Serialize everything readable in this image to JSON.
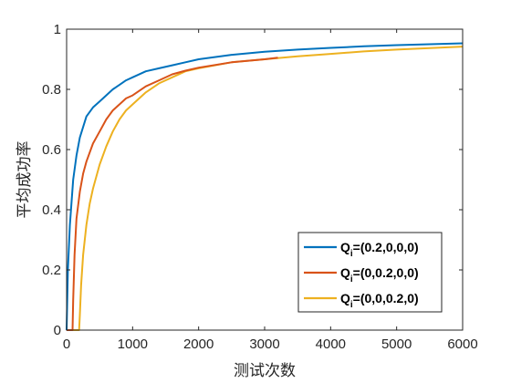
{
  "chart_data": {
    "type": "line",
    "xlabel": "测试次数",
    "ylabel": "平均成功率",
    "xlim": [
      0,
      6000
    ],
    "ylim": [
      0,
      1
    ],
    "x_ticks": [
      0,
      1000,
      2000,
      3000,
      4000,
      5000,
      6000
    ],
    "y_ticks": [
      0,
      0.2,
      0.4,
      0.6,
      0.8,
      1
    ],
    "x_tick_labels": [
      "0",
      "1000",
      "2000",
      "3000",
      "4000",
      "5000",
      "6000"
    ],
    "y_tick_labels": [
      "0",
      "0.2",
      "0.4",
      "0.6",
      "0.8",
      "1"
    ],
    "grid": false,
    "legend_position": "bottom-right",
    "series": [
      {
        "name": "Q_i=(0.2,0,0,0)",
        "label_main": "Q",
        "label_sub": "i",
        "label_rest": "=(0.2,0,0,0)",
        "color": "#0072BD",
        "x": [
          0,
          20,
          50,
          100,
          150,
          200,
          300,
          400,
          500,
          600,
          700,
          800,
          900,
          1000,
          1200,
          1400,
          1600,
          1800,
          2000,
          2500,
          3000,
          3500,
          4000,
          4500,
          5000,
          5500,
          6000
        ],
        "y": [
          0,
          0.2,
          0.35,
          0.5,
          0.58,
          0.64,
          0.71,
          0.74,
          0.76,
          0.78,
          0.8,
          0.815,
          0.83,
          0.84,
          0.86,
          0.87,
          0.88,
          0.89,
          0.9,
          0.915,
          0.925,
          0.932,
          0.938,
          0.943,
          0.947,
          0.95,
          0.953
        ]
      },
      {
        "name": "Q_i=(0,0.2,0,0)",
        "label_main": "Q",
        "label_sub": "i",
        "label_rest": "=(0,0.2,0,0)",
        "color": "#D95319",
        "x": [
          0,
          90,
          100,
          120,
          150,
          200,
          250,
          300,
          400,
          500,
          600,
          700,
          800,
          900,
          1000,
          1200,
          1400,
          1600,
          1800,
          2000,
          2500,
          3000,
          3200
        ],
        "y": [
          0,
          0,
          0.1,
          0.25,
          0.37,
          0.46,
          0.52,
          0.56,
          0.62,
          0.66,
          0.7,
          0.73,
          0.75,
          0.77,
          0.78,
          0.81,
          0.83,
          0.85,
          0.862,
          0.872,
          0.89,
          0.9,
          0.905
        ]
      },
      {
        "name": "Q_i=(0,0,0.2,0)",
        "label_main": "Q",
        "label_sub": "i",
        "label_rest": "=(0,0,0.2,0)",
        "color": "#EDB120",
        "x": [
          0,
          190,
          200,
          220,
          250,
          300,
          350,
          400,
          500,
          600,
          700,
          800,
          900,
          1000,
          1200,
          1400,
          1600,
          1800,
          2000,
          2500,
          3000,
          3500,
          4000,
          4500,
          5000,
          5500,
          6000
        ],
        "y": [
          0,
          0,
          0.05,
          0.15,
          0.25,
          0.35,
          0.42,
          0.47,
          0.55,
          0.61,
          0.66,
          0.7,
          0.73,
          0.75,
          0.79,
          0.82,
          0.84,
          0.86,
          0.87,
          0.89,
          0.9,
          0.91,
          0.918,
          0.926,
          0.932,
          0.937,
          0.942
        ]
      }
    ]
  }
}
